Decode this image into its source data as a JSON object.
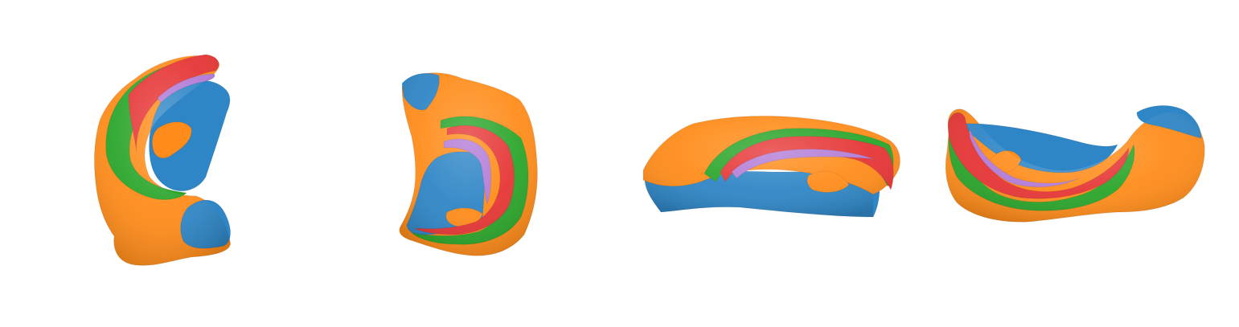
{
  "figure": {
    "background": "#ffffff",
    "colors": {
      "orange": "#ff8c1a",
      "blue": "#2f86c6",
      "green": "#2aa52a",
      "red": "#e63535",
      "purple": "#b27bd6",
      "shade": "#000000"
    },
    "views": [
      {
        "name": "view-1"
      },
      {
        "name": "view-2"
      },
      {
        "name": "view-3"
      },
      {
        "name": "view-4"
      }
    ]
  }
}
